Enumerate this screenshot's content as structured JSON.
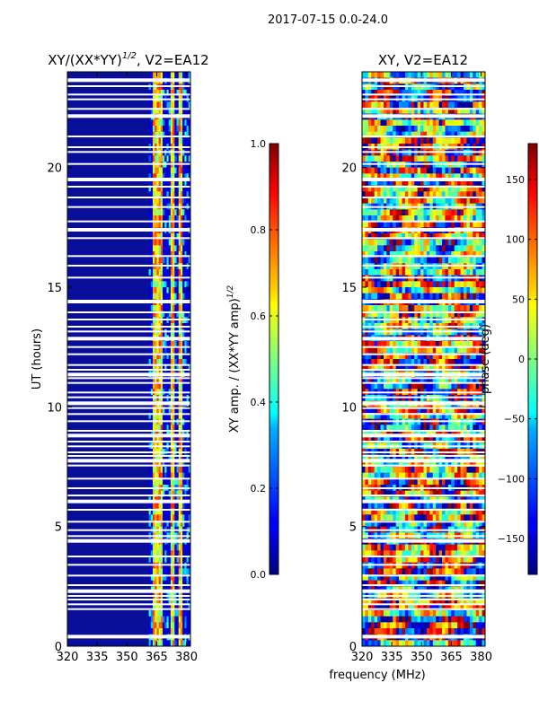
{
  "figure_title": "2017-07-15 0.0-24.0",
  "xlabel_shared": "frequency (MHz)",
  "chart_data": [
    {
      "type": "heatmap",
      "title_main": "XY/(XX*YY)",
      "title_sup": "1/2",
      "title_suffix": ", V2=EA12",
      "ylabel": "UT (hours)",
      "xlim": [
        320,
        382
      ],
      "ylim": [
        0,
        24
      ],
      "xticks": [
        320,
        335,
        350,
        365,
        380
      ],
      "yticks": [
        0,
        5,
        10,
        15,
        20
      ],
      "colorbar": {
        "label_main": "XY amp. / (XX*YY amp)",
        "label_sup": "1/2",
        "range": [
          0.0,
          1.0
        ],
        "ticks": [
          0.0,
          0.2,
          0.4,
          0.6,
          0.8,
          1.0
        ],
        "tick_labels": [
          "0.0",
          "0.2",
          "0.4",
          "0.6",
          "0.8",
          "1.0"
        ],
        "colormap": "jet"
      },
      "data_summary": "Mostly low amplitude (~0.05) across band; elevated amplitude (0.4-0.9) in narrow channels near 363-368, 372-374 and 376-378 MHz",
      "bright_channels_mhz": [
        [
          363,
          368
        ],
        [
          372,
          374
        ],
        [
          376,
          378
        ]
      ]
    },
    {
      "type": "heatmap",
      "title_main": "XY, V2=EA12",
      "ylabel": "",
      "xlim": [
        320,
        382
      ],
      "ylim": [
        0,
        24
      ],
      "xticks": [
        320,
        335,
        350,
        365,
        380
      ],
      "yticks": [
        0,
        5,
        10,
        15,
        20
      ],
      "colorbar": {
        "label_main": "phase (deg)",
        "range": [
          -180,
          180
        ],
        "ticks": [
          -150,
          -100,
          -50,
          0,
          50,
          100,
          150
        ],
        "tick_labels": [
          "−150",
          "−100",
          "−50",
          "0",
          "50",
          "100",
          "150"
        ],
        "colormap": "jet"
      },
      "data_summary": "Phase varies widely across the full -180 to 180 deg range in patchy structures"
    }
  ],
  "flagged_rows_hours": [
    0.4,
    1.55,
    1.75,
    1.95,
    2.1,
    2.3,
    2.55,
    2.95,
    3.4,
    3.75,
    4.4,
    4.6,
    4.85,
    5.2,
    5.7,
    6.05,
    6.3,
    6.6,
    7.0,
    7.55,
    7.75,
    7.95,
    8.1,
    8.35,
    8.55,
    8.8,
    9.0,
    9.4,
    9.7,
    9.95,
    10.15,
    10.4,
    10.6,
    11.0,
    11.2,
    11.35,
    11.55,
    11.75,
    12.2,
    12.5,
    12.85,
    13.15,
    13.35,
    13.65,
    13.95,
    14.4,
    15.4,
    15.9,
    16.3,
    17.05,
    17.4,
    17.75,
    18.35,
    18.75,
    19.2,
    19.5,
    20.15,
    20.65,
    20.85,
    21.3,
    22.15,
    22.45,
    22.85,
    23.05,
    23.4,
    23.65
  ]
}
